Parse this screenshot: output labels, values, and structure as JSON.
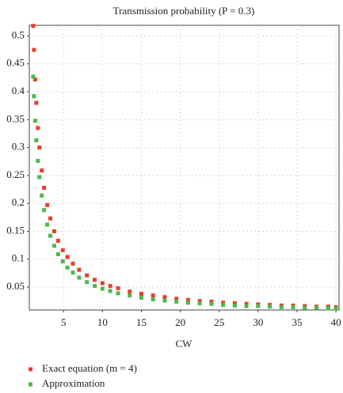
{
  "chart_data": {
    "type": "scatter",
    "title": "Transmission probability (P = 0.3)",
    "x_label": "CW",
    "x": [
      1.1,
      1.2,
      1.35,
      1.5,
      1.7,
      1.9,
      2.2,
      2.5,
      2.9,
      3.3,
      3.8,
      4.3,
      4.9,
      5.5,
      6.2,
      7,
      8,
      9,
      10,
      11,
      12,
      13.5,
      15,
      16.5,
      18,
      19.5,
      21,
      22.5,
      24,
      25.5,
      27,
      28.5,
      30,
      31.5,
      33,
      34.5,
      36,
      37.5,
      39,
      40
    ],
    "series": [
      {
        "name": "Exact equation (m = 4)",
        "color": "#e8402a",
        "values": [
          0.518,
          0.475,
          0.422,
          0.38,
          0.335,
          0.3,
          0.259,
          0.228,
          0.197,
          0.173,
          0.15,
          0.133,
          0.116,
          0.104,
          0.092,
          0.081,
          0.071,
          0.063,
          0.057,
          0.052,
          0.048,
          0.042,
          0.038,
          0.035,
          0.032,
          0.029,
          0.027,
          0.025,
          0.024,
          0.022,
          0.021,
          0.02,
          0.019,
          0.018,
          0.017,
          0.017,
          0.016,
          0.015,
          0.015,
          0.014
        ]
      },
      {
        "name": "Approximation",
        "color": "#4cb84c",
        "values": [
          0.427,
          0.392,
          0.348,
          0.313,
          0.276,
          0.247,
          0.214,
          0.188,
          0.162,
          0.142,
          0.124,
          0.109,
          0.096,
          0.085,
          0.076,
          0.067,
          0.059,
          0.052,
          0.047,
          0.043,
          0.039,
          0.035,
          0.031,
          0.028,
          0.026,
          0.024,
          0.022,
          0.021,
          0.02,
          0.018,
          0.017,
          0.016,
          0.016,
          0.015,
          0.014,
          0.014,
          0.013,
          0.013,
          0.012,
          0.012
        ]
      }
    ],
    "xlim": [
      0.6,
      40.4
    ],
    "ylim": [
      0.009,
      0.519
    ],
    "xticks": [
      5,
      10,
      15,
      20,
      25,
      30,
      35,
      40
    ],
    "yticks": [
      0.05,
      0.1,
      0.15,
      0.2,
      0.25,
      0.3,
      0.35,
      0.4,
      0.45,
      0.5
    ],
    "grid": true
  }
}
